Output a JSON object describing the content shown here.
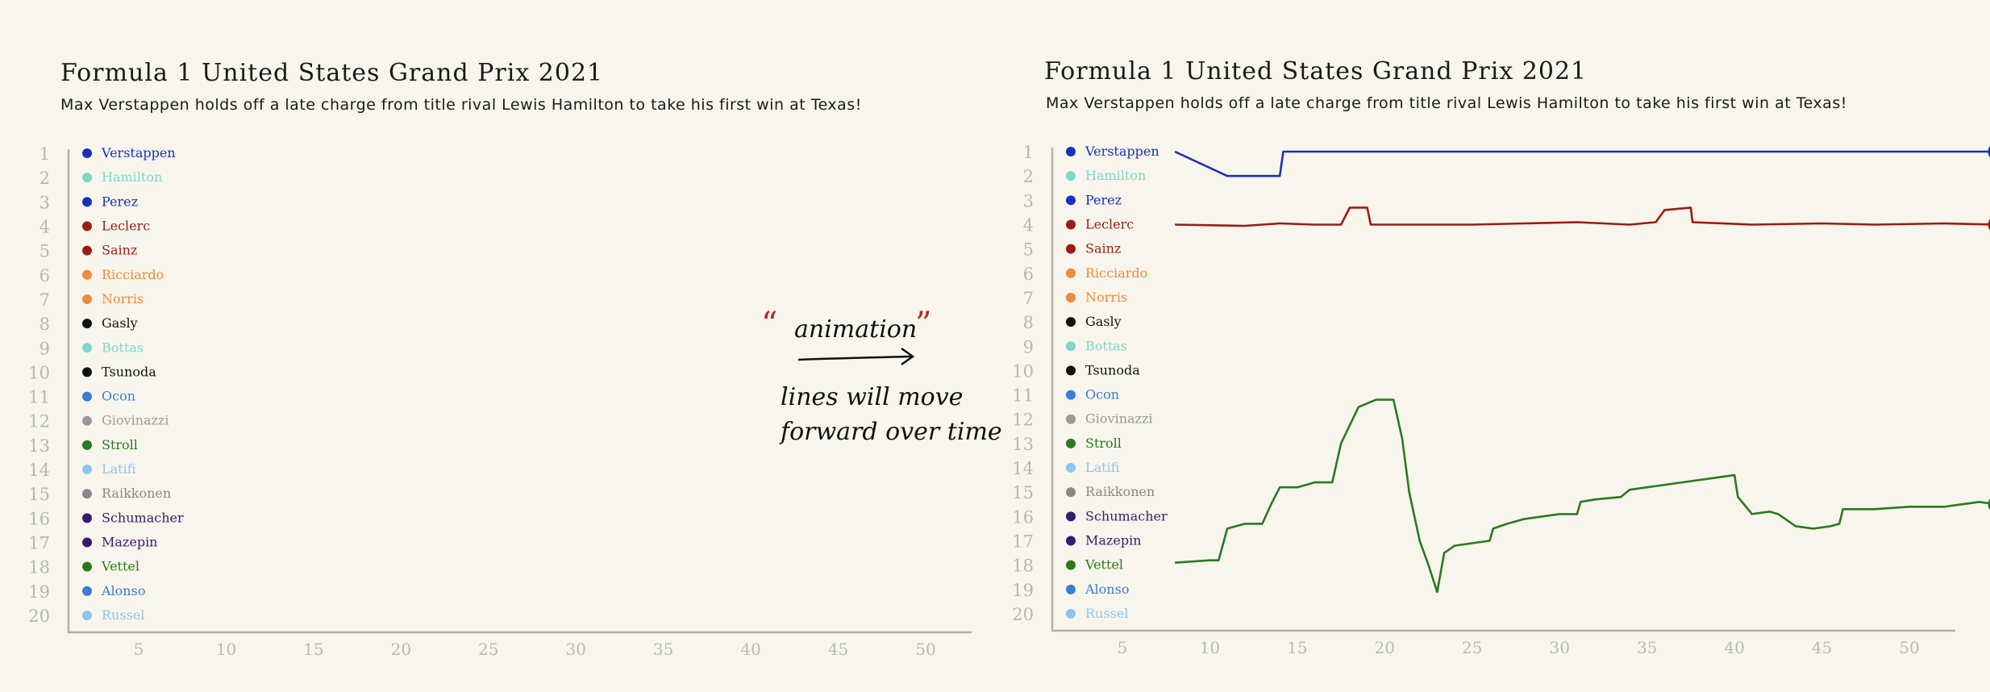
{
  "panels": [
    {
      "title": "Formula 1 United States Grand Prix 2021",
      "subtitle": "Max Verstappen holds off a late charge from title rival Lewis Hamilton to take his first win at Texas!",
      "annotation": {
        "label": "animation",
        "lines": [
          "lines will move",
          "forward over time"
        ]
      }
    },
    {
      "title": "Formula 1 United States Grand Prix 2021",
      "subtitle": "Max Verstappen holds off a late charge from title rival Lewis Hamilton to take his first win at Texas!"
    }
  ],
  "chart_data": {
    "type": "line",
    "xlabel": "",
    "ylabel": "",
    "x_ticks": [
      5,
      10,
      15,
      20,
      25,
      30,
      35,
      40,
      45,
      50
    ],
    "y_ticks": [
      1,
      2,
      3,
      4,
      5,
      6,
      7,
      8,
      9,
      10,
      11,
      12,
      13,
      14,
      15,
      16,
      17,
      18,
      19,
      20
    ],
    "xlim": [
      1,
      56
    ],
    "ylim": [
      20,
      1
    ],
    "drivers": [
      {
        "position": 1,
        "name": "Verstappen",
        "color": "#1a2fc0"
      },
      {
        "position": 2,
        "name": "Hamilton",
        "color": "#7fd6c9"
      },
      {
        "position": 3,
        "name": "Perez",
        "color": "#1a2fc0"
      },
      {
        "position": 4,
        "name": "Leclerc",
        "color": "#9b1c14"
      },
      {
        "position": 5,
        "name": "Sainz",
        "color": "#9b1c14"
      },
      {
        "position": 6,
        "name": "Ricciardo",
        "color": "#ee8a3a"
      },
      {
        "position": 7,
        "name": "Norris",
        "color": "#ee8a3a"
      },
      {
        "position": 8,
        "name": "Gasly",
        "color": "#111111"
      },
      {
        "position": 9,
        "name": "Bottas",
        "color": "#7fd6c9"
      },
      {
        "position": 10,
        "name": "Tsunoda",
        "color": "#111111"
      },
      {
        "position": 11,
        "name": "Ocon",
        "color": "#3a7bd5"
      },
      {
        "position": 12,
        "name": "Giovinazzi",
        "color": "#999999"
      },
      {
        "position": 13,
        "name": "Stroll",
        "color": "#2a7a1f"
      },
      {
        "position": 14,
        "name": "Latifi",
        "color": "#8ec4f0"
      },
      {
        "position": 15,
        "name": "Raikkonen",
        "color": "#888888"
      },
      {
        "position": 16,
        "name": "Schumacher",
        "color": "#3a1a70"
      },
      {
        "position": 17,
        "name": "Mazepin",
        "color": "#3a1a70"
      },
      {
        "position": 18,
        "name": "Vettel",
        "color": "#2a7a1f"
      },
      {
        "position": 19,
        "name": "Alonso",
        "color": "#3a7bd5"
      },
      {
        "position": 20,
        "name": "Russel",
        "color": "#8ec4f0"
      }
    ],
    "series": [
      {
        "name": "Verstappen",
        "color": "#1a2fc0",
        "points": [
          [
            8,
            1
          ],
          [
            11,
            2
          ],
          [
            14,
            2
          ],
          [
            14.2,
            1
          ],
          [
            55,
            1
          ]
        ]
      },
      {
        "name": "Leclerc",
        "color": "#9b1c14",
        "points": [
          [
            8,
            4
          ],
          [
            12,
            4.05
          ],
          [
            14,
            3.95
          ],
          [
            16,
            4
          ],
          [
            17.5,
            4
          ],
          [
            18,
            3.3
          ],
          [
            19,
            3.3
          ],
          [
            19.2,
            4
          ],
          [
            22,
            4
          ],
          [
            25,
            4
          ],
          [
            28,
            3.95
          ],
          [
            31,
            3.9
          ],
          [
            34,
            4
          ],
          [
            35.5,
            3.9
          ],
          [
            36,
            3.4
          ],
          [
            37.5,
            3.3
          ],
          [
            37.6,
            3.9
          ],
          [
            41,
            4
          ],
          [
            45,
            3.95
          ],
          [
            48,
            4
          ],
          [
            52,
            3.95
          ],
          [
            55,
            4
          ]
        ]
      },
      {
        "name": "Vettel",
        "color": "#2a7a1f",
        "points": [
          [
            8,
            17.9
          ],
          [
            10,
            17.8
          ],
          [
            10.5,
            17.8
          ],
          [
            11,
            16.5
          ],
          [
            12,
            16.3
          ],
          [
            13,
            16.3
          ],
          [
            13.5,
            15.5
          ],
          [
            14,
            14.8
          ],
          [
            15,
            14.8
          ],
          [
            15.5,
            14.7
          ],
          [
            16,
            14.6
          ],
          [
            17,
            14.6
          ],
          [
            17.5,
            13
          ],
          [
            18.5,
            11.5
          ],
          [
            19.5,
            11.2
          ],
          [
            20.5,
            11.2
          ],
          [
            21,
            12.8
          ],
          [
            21.4,
            15
          ],
          [
            22,
            17
          ],
          [
            22.5,
            18
          ],
          [
            23,
            19.1
          ],
          [
            23.4,
            17.5
          ],
          [
            24,
            17.2
          ],
          [
            25,
            17.1
          ],
          [
            26,
            17
          ],
          [
            26.2,
            16.5
          ],
          [
            27,
            16.3
          ],
          [
            28,
            16.1
          ],
          [
            30,
            15.9
          ],
          [
            31,
            15.9
          ],
          [
            31.2,
            15.4
          ],
          [
            32,
            15.3
          ],
          [
            33.5,
            15.2
          ],
          [
            34,
            14.9
          ],
          [
            35,
            14.8
          ],
          [
            37,
            14.6
          ],
          [
            39,
            14.4
          ],
          [
            40,
            14.3
          ],
          [
            40.2,
            15.2
          ],
          [
            41,
            15.9
          ],
          [
            42,
            15.8
          ],
          [
            42.5,
            15.9
          ],
          [
            43.5,
            16.4
          ],
          [
            44.5,
            16.5
          ],
          [
            45.5,
            16.4
          ],
          [
            46,
            16.3
          ],
          [
            46.2,
            15.7
          ],
          [
            48,
            15.7
          ],
          [
            50,
            15.6
          ],
          [
            52,
            15.6
          ],
          [
            54,
            15.4
          ],
          [
            55,
            15.5
          ]
        ]
      }
    ]
  }
}
